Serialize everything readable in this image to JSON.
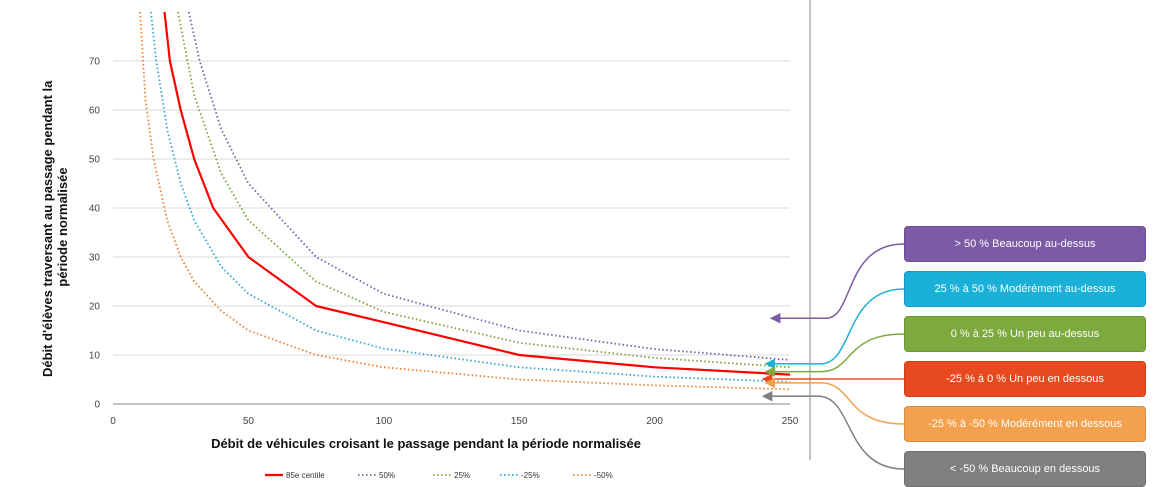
{
  "chart_data": {
    "type": "line",
    "xlabel": "Débit de véhicules croisant le passage pendant la période normalisée",
    "ylabel": "Débit d'élèves traversant au passage pendant la période normalisée",
    "xlim": [
      0,
      250
    ],
    "ylim": [
      0,
      80
    ],
    "x_ticks": [
      "0",
      "50",
      "100",
      "150",
      "200",
      "250"
    ],
    "y_ticks": [
      "0",
      "10",
      "20",
      "30",
      "40",
      "50",
      "60",
      "70"
    ],
    "grid": "horizontal",
    "legend_position": "bottom",
    "series": [
      {
        "name": "85e centile",
        "color": "#ff0000",
        "style": "solid",
        "x": [
          19,
          21,
          25,
          30,
          37,
          50,
          75,
          100,
          150,
          200,
          250
        ],
        "y": [
          80,
          70,
          60,
          50,
          40,
          30,
          20,
          16.7,
          10,
          7.5,
          6
        ]
      },
      {
        "name": "50%",
        "color": "#7060b0",
        "style": "dotted",
        "x": [
          28,
          32,
          40,
          50,
          75,
          100,
          150,
          200,
          250
        ],
        "y": [
          80,
          70,
          56,
          45,
          30,
          22.5,
          15,
          11.2,
          9
        ]
      },
      {
        "name": "25%",
        "color": "#77a33a",
        "style": "dotted",
        "x": [
          24,
          30,
          40,
          50,
          75,
          100,
          150,
          200,
          250
        ],
        "y": [
          80,
          63,
          47,
          37.5,
          25,
          18.8,
          12.5,
          9.4,
          7.5
        ]
      },
      {
        "name": "-25%",
        "color": "#2aa7d8",
        "style": "dotted",
        "x": [
          14,
          16,
          20,
          25,
          30,
          40,
          50,
          75,
          100,
          150,
          200,
          250
        ],
        "y": [
          80,
          70,
          56,
          45,
          37.5,
          28,
          22.5,
          15,
          11.3,
          7.5,
          5.6,
          4.5
        ]
      },
      {
        "name": "-50%",
        "color": "#f07d33",
        "style": "dotted",
        "x": [
          10,
          12,
          15,
          20,
          25,
          30,
          40,
          50,
          75,
          100,
          150,
          200,
          250
        ],
        "y": [
          80,
          62,
          50,
          37.5,
          30,
          25,
          19,
          15,
          10,
          7.5,
          5,
          3.8,
          3
        ]
      }
    ],
    "annotations": [
      {
        "text": "> 50 % Beaucoup au-dessus",
        "color": "#7b5aa6",
        "target": [
          243,
          17.5
        ]
      },
      {
        "text": "25 % à 50 % Modérément au-dessus",
        "color": "#1ab0d8",
        "target": [
          241,
          8.2
        ]
      },
      {
        "text": "0 % à 25 % Un peu au-dessus",
        "color": "#7daa3e",
        "target": [
          241,
          6.6
        ]
      },
      {
        "text": "-25 % à 0 % Un peu en dessous",
        "color": "#e84a1f",
        "target": [
          240,
          5.1
        ]
      },
      {
        "text": "-25 % à -50 % Modérément en dessous",
        "color": "#f3a04f",
        "target": [
          241,
          4.3
        ]
      },
      {
        "text": "< -50 % Beaucoup en dessous",
        "color": "#7f7f7f",
        "target": [
          240,
          1.6
        ]
      }
    ]
  }
}
